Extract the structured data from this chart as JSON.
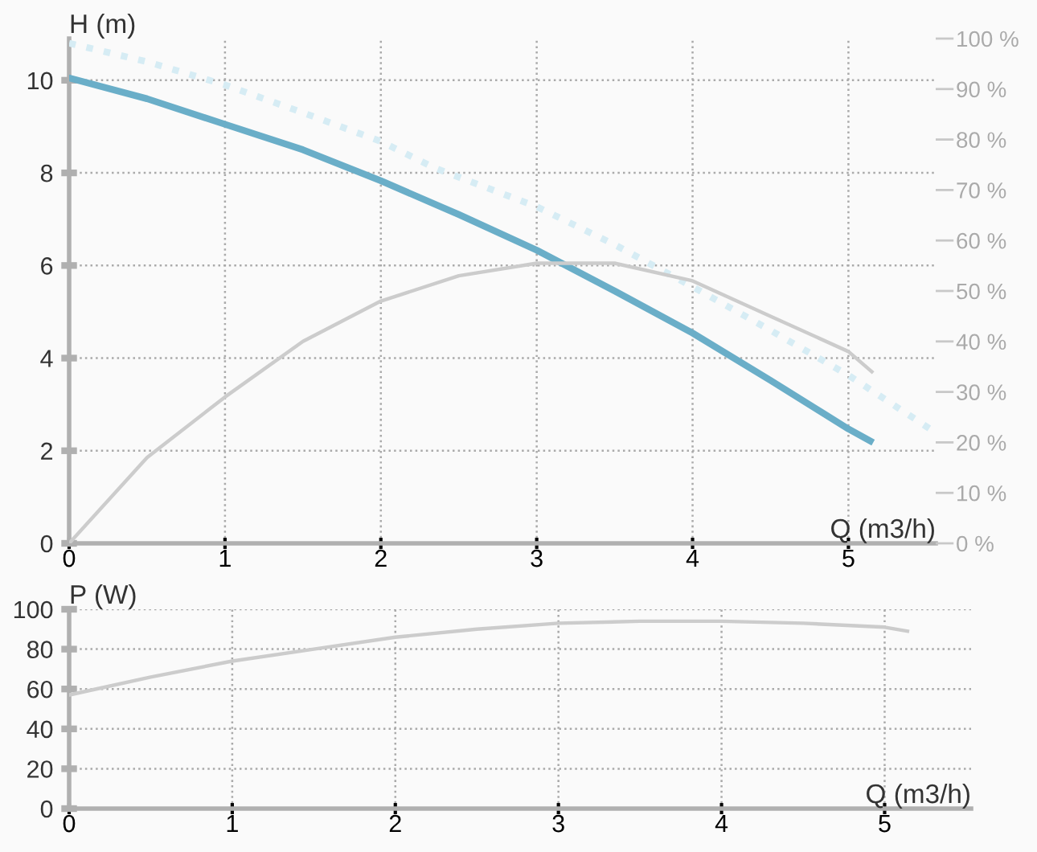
{
  "chart_data": [
    {
      "type": "line",
      "xlabel": "Q (m3/h)",
      "ylabel": "H (m)",
      "xlim": [
        0,
        5.56
      ],
      "xticks": [
        0,
        1,
        2,
        3,
        4,
        5
      ],
      "ylim": [
        0,
        10.9
      ],
      "yticks": [
        0,
        2,
        4,
        6,
        8,
        10
      ],
      "y2lim": [
        0,
        100
      ],
      "y2ticks": [
        {
          "value": 0,
          "label": "0 %"
        },
        {
          "value": 10,
          "label": "10 %"
        },
        {
          "value": 20,
          "label": "20 %"
        },
        {
          "value": 30,
          "label": "30 %"
        },
        {
          "value": 40,
          "label": "40 %"
        },
        {
          "value": 50,
          "label": "50 %"
        },
        {
          "value": 60,
          "label": "60 %"
        },
        {
          "value": 70,
          "label": "70 %"
        },
        {
          "value": 80,
          "label": "80 %"
        },
        {
          "value": 90,
          "label": "90 %"
        },
        {
          "value": 100,
          "label": "100 %"
        }
      ],
      "grid": true,
      "series": [
        {
          "color": "#d6ecf4",
          "line_style": "dotted",
          "x": [
            0,
            0.5,
            1,
            1.5,
            2,
            2.35,
            3,
            3.5,
            4,
            4.5,
            5,
            5.56
          ],
          "values": [
            10.8,
            10.4,
            9.9,
            9.3,
            8.68,
            8.1,
            7.27,
            6.45,
            5.54,
            4.6,
            3.63,
            2.39
          ]
        },
        {
          "color": "#6aaec8",
          "line_style": "solid",
          "x": [
            0,
            0.5,
            1,
            1.5,
            2,
            2.5,
            3,
            3.5,
            4,
            4.5,
            5,
            5.14
          ],
          "values": [
            10.05,
            9.6,
            9.05,
            8.5,
            7.83,
            7.1,
            6.33,
            5.45,
            4.54,
            3.52,
            2.47,
            2.21
          ]
        },
        {
          "color": "#cccccc",
          "line_style": "solid",
          "axis": "y2",
          "x": [
            0,
            0.5,
            1,
            1.5,
            2,
            2.5,
            3,
            3.5,
            4,
            4.5,
            5,
            5.15
          ],
          "values": [
            0,
            17,
            29,
            40,
            48,
            53,
            55.5,
            55.5,
            52,
            45,
            38,
            34
          ]
        }
      ]
    },
    {
      "type": "line",
      "xlabel": "Q (m3/h)",
      "ylabel": "P (W)",
      "xlim": [
        0,
        5.53
      ],
      "xticks": [
        0,
        1,
        2,
        3,
        4,
        5
      ],
      "ylim": [
        0,
        100
      ],
      "yticks": [
        0,
        20,
        40,
        60,
        80,
        100
      ],
      "grid": true,
      "series": [
        {
          "color": "#cccccc",
          "line_style": "solid",
          "x": [
            0,
            0.5,
            1,
            1.5,
            2,
            2.5,
            3,
            3.5,
            4,
            4.5,
            5,
            5.14
          ],
          "values": [
            57,
            66,
            74,
            80,
            86,
            90,
            93,
            94,
            94,
            93,
            91,
            89
          ]
        }
      ]
    }
  ]
}
